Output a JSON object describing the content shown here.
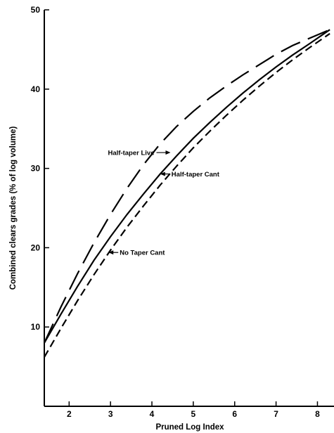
{
  "chart_data": {
    "type": "line",
    "title": "",
    "xlabel": "Pruned Log Index",
    "ylabel": "Combined clears grades (% of log volume)",
    "xlim": [
      1.4,
      8.4
    ],
    "ylim": [
      0,
      50
    ],
    "x_ticks": [
      2,
      3,
      4,
      5,
      6,
      7,
      8
    ],
    "y_ticks": [
      10,
      20,
      30,
      40,
      50
    ],
    "grid": false,
    "series": [
      {
        "name": "Half-taper Live",
        "dash": "long-dash",
        "x": [
          1.4,
          1.8,
          2.2,
          2.6,
          3.0,
          3.4,
          3.8,
          4.2,
          4.6,
          5.0,
          5.4,
          5.8,
          6.2,
          6.6,
          7.0,
          7.4,
          7.8,
          8.3
        ],
        "y": [
          8.0,
          12.5,
          16.7,
          20.6,
          24.2,
          27.5,
          30.5,
          33.1,
          35.3,
          37.2,
          38.9,
          40.4,
          41.8,
          43.1,
          44.4,
          45.5,
          46.4,
          47.5
        ]
      },
      {
        "name": "Half-taper Cant",
        "dash": "solid",
        "x": [
          1.4,
          1.8,
          2.2,
          2.6,
          3.0,
          3.4,
          3.8,
          4.2,
          4.6,
          5.0,
          5.4,
          5.8,
          6.2,
          6.6,
          7.0,
          7.4,
          7.8,
          8.3
        ],
        "y": [
          8.0,
          11.6,
          15.1,
          18.4,
          21.4,
          24.2,
          26.8,
          29.3,
          31.6,
          33.8,
          35.8,
          37.7,
          39.5,
          41.2,
          42.8,
          44.3,
          45.7,
          47.5
        ]
      },
      {
        "name": "No Taper Cant",
        "dash": "short-dash",
        "x": [
          1.4,
          1.8,
          2.2,
          2.6,
          3.0,
          3.4,
          3.8,
          4.2,
          4.6,
          5.0,
          5.4,
          5.8,
          6.2,
          6.6,
          7.0,
          7.4,
          7.8,
          8.3
        ],
        "y": [
          6.2,
          9.8,
          13.3,
          16.6,
          19.7,
          22.6,
          25.3,
          27.9,
          30.3,
          32.6,
          34.7,
          36.7,
          38.6,
          40.4,
          42.1,
          43.7,
          45.2,
          47.0
        ]
      }
    ],
    "annotations": [
      {
        "text": "Half-taper Live",
        "series": 0,
        "x": 4.45,
        "y": 32.0,
        "side": "left"
      },
      {
        "text": "Half-taper Cant",
        "series": 1,
        "x": 4.2,
        "y": 29.3,
        "side": "right"
      },
      {
        "text": "No Taper Cant",
        "series": 2,
        "x": 2.95,
        "y": 19.4,
        "side": "right"
      }
    ]
  }
}
